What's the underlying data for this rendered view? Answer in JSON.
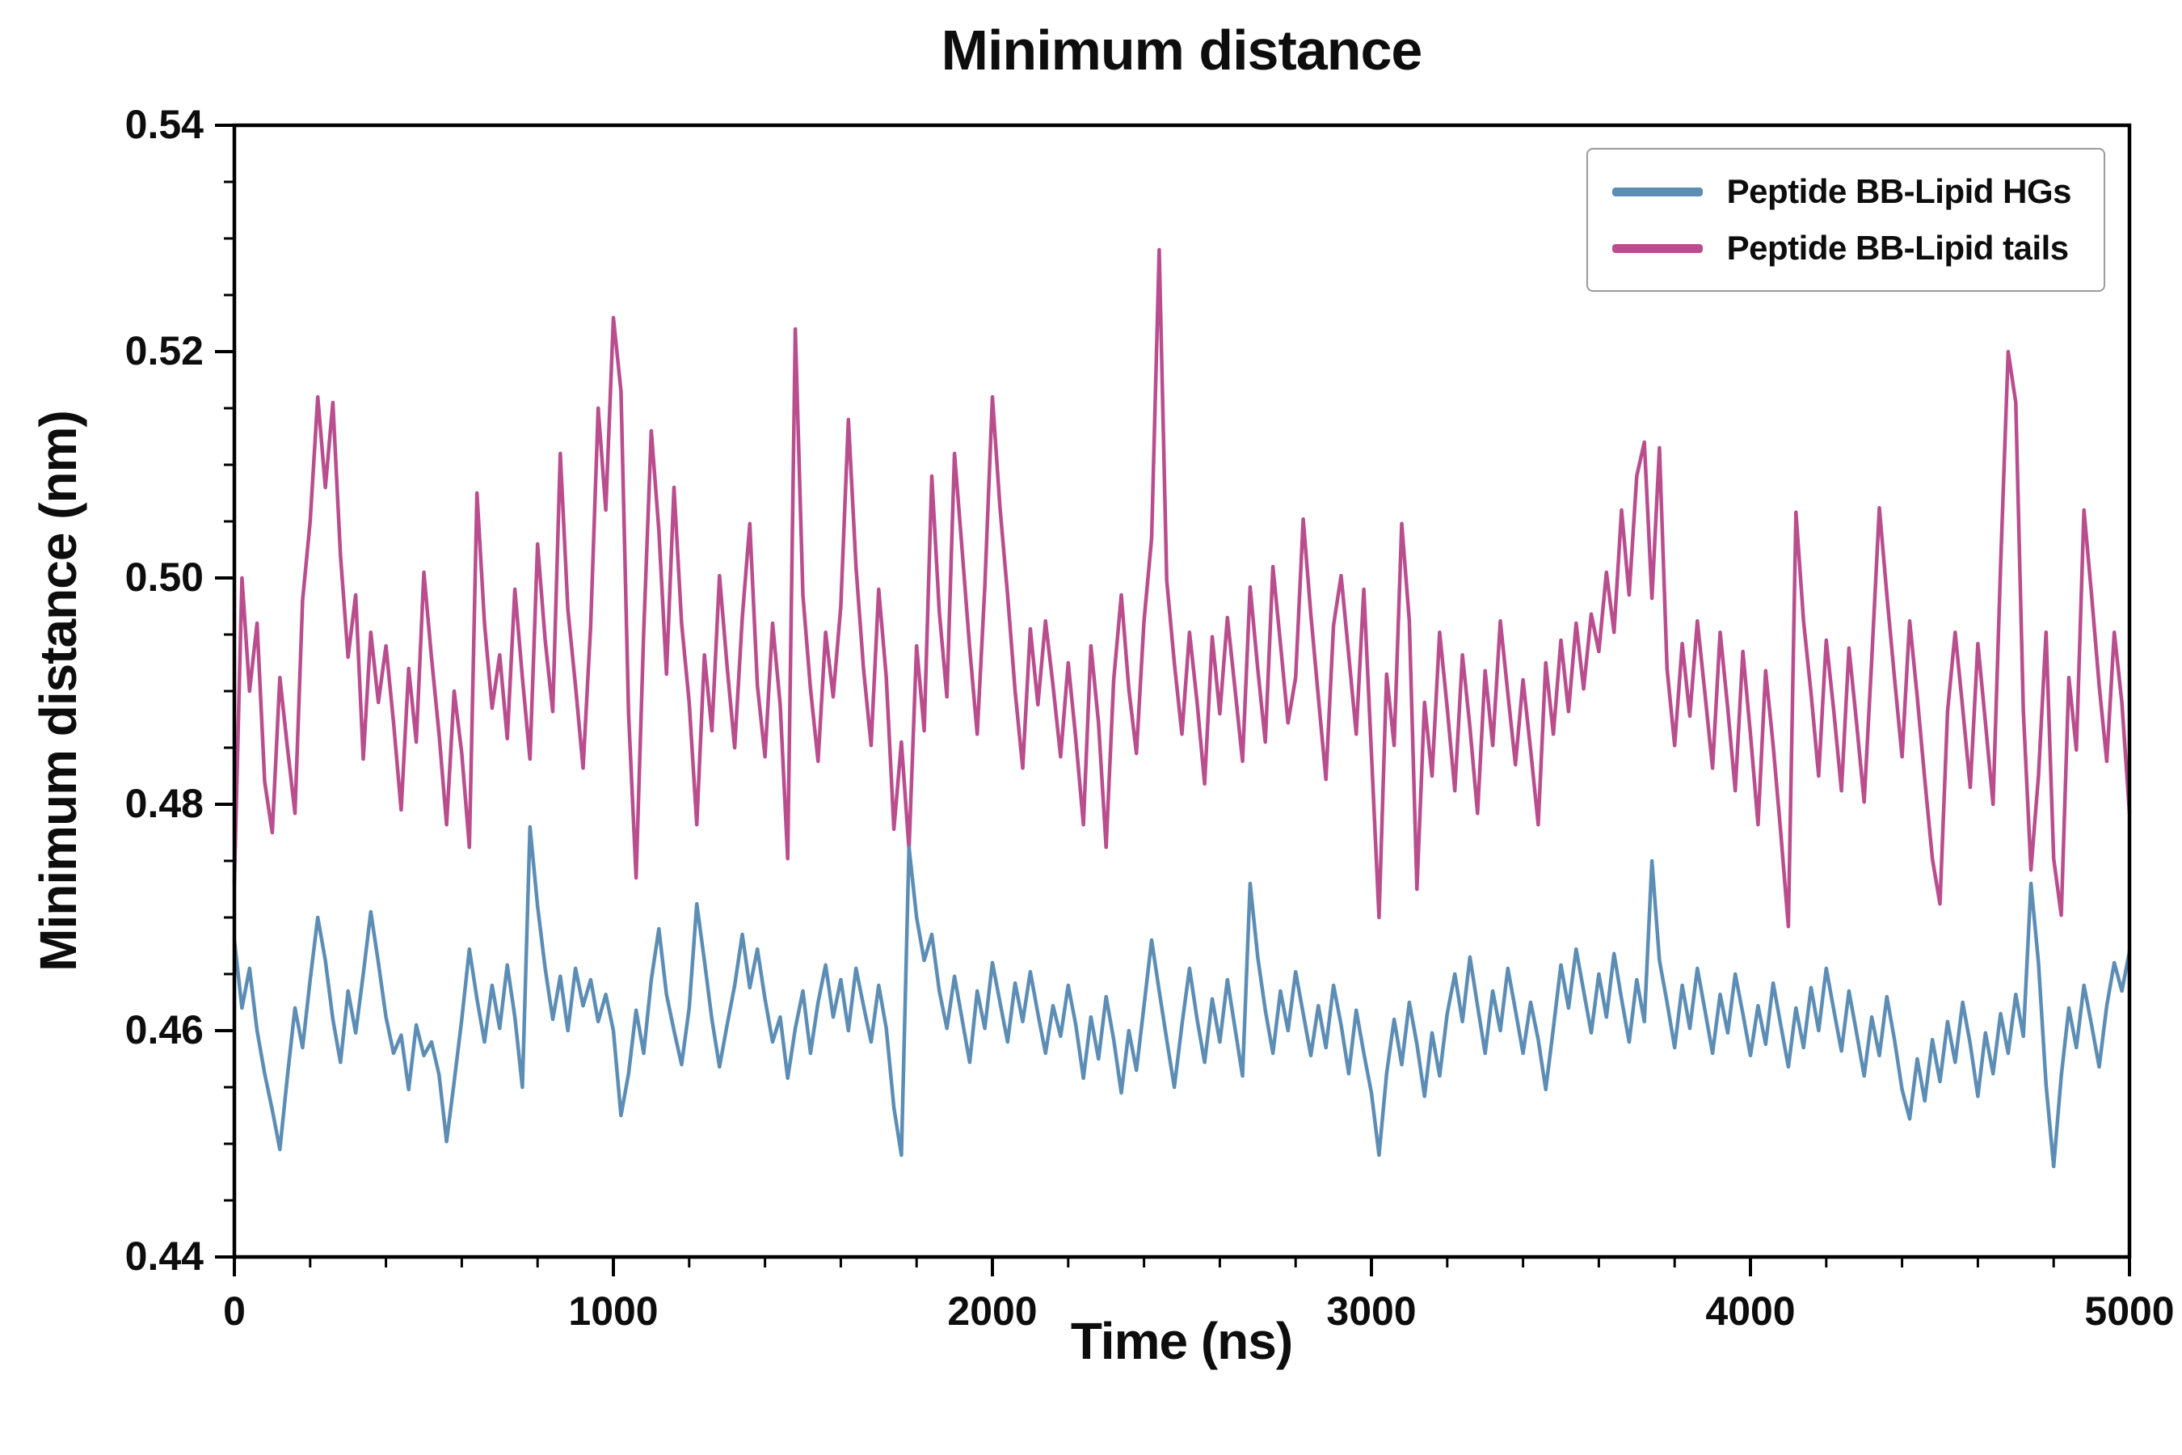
{
  "title": "Minimum distance",
  "axes": {
    "xlabel": "Time (ns)",
    "ylabel": "Minimum distance (nm)",
    "xlim": [
      0,
      5000
    ],
    "ylim": [
      0.44,
      0.54
    ],
    "x_major_ticks": [
      0,
      1000,
      2000,
      3000,
      4000,
      5000
    ],
    "x_tick_labels": [
      "0",
      "1000",
      "2000",
      "3000",
      "4000",
      "5000"
    ],
    "x_minor_step": 200,
    "y_major_ticks": [
      0.44,
      0.46,
      0.48,
      0.5,
      0.52,
      0.54
    ],
    "y_tick_labels": [
      "0.44",
      "0.46",
      "0.48",
      "0.50",
      "0.52",
      "0.54"
    ],
    "y_minor_step": 0.005
  },
  "legend": {
    "entries": [
      {
        "label": "Peptide BB-Lipid HGs",
        "color": "#5c8db5"
      },
      {
        "label": "Peptide BB-Lipid tails",
        "color": "#b94d8e"
      }
    ]
  },
  "colors": {
    "frame": "#000000",
    "blue_series": "#5c8db5",
    "pink_series": "#b94d8e"
  },
  "chart_data": {
    "type": "line",
    "title": "Minimum distance",
    "xlabel": "Time (ns)",
    "ylabel": "Minimum distance (nm)",
    "xlim": [
      0,
      5000
    ],
    "ylim": [
      0.44,
      0.54
    ],
    "grid": false,
    "legend_position": "upper right",
    "x_start": 0,
    "x_step": 20,
    "series": [
      {
        "name": "Peptide BB-Lipid HGs",
        "color": "#5c8db5",
        "values": [
          0.468,
          0.462,
          0.4655,
          0.46,
          0.4562,
          0.453,
          0.4495,
          0.456,
          0.462,
          0.4585,
          0.4645,
          0.47,
          0.4662,
          0.461,
          0.4572,
          0.4635,
          0.4598,
          0.465,
          0.4705,
          0.466,
          0.4612,
          0.458,
          0.4596,
          0.4548,
          0.4605,
          0.4578,
          0.459,
          0.4561,
          0.4502,
          0.4555,
          0.461,
          0.4672,
          0.4628,
          0.459,
          0.464,
          0.4602,
          0.4658,
          0.4612,
          0.455,
          0.478,
          0.471,
          0.4655,
          0.461,
          0.4648,
          0.46,
          0.4655,
          0.4622,
          0.4645,
          0.4608,
          0.4632,
          0.46,
          0.4525,
          0.4562,
          0.4618,
          0.458,
          0.4645,
          0.469,
          0.4632,
          0.46,
          0.457,
          0.462,
          0.4712,
          0.4662,
          0.461,
          0.4568,
          0.4605,
          0.464,
          0.4685,
          0.4638,
          0.4672,
          0.4628,
          0.459,
          0.4612,
          0.4558,
          0.4602,
          0.4635,
          0.458,
          0.4625,
          0.4658,
          0.4612,
          0.4645,
          0.46,
          0.4655,
          0.4622,
          0.459,
          0.464,
          0.4602,
          0.4532,
          0.449,
          0.4762,
          0.47,
          0.4662,
          0.4685,
          0.4635,
          0.4602,
          0.4648,
          0.461,
          0.4572,
          0.4635,
          0.4602,
          0.466,
          0.4625,
          0.459,
          0.4642,
          0.4608,
          0.4652,
          0.4615,
          0.458,
          0.4622,
          0.4595,
          0.464,
          0.4605,
          0.4558,
          0.4612,
          0.4575,
          0.463,
          0.4592,
          0.4545,
          0.46,
          0.4565,
          0.4622,
          0.468,
          0.4635,
          0.4592,
          0.455,
          0.4605,
          0.4655,
          0.461,
          0.4572,
          0.4628,
          0.459,
          0.4645,
          0.4602,
          0.456,
          0.473,
          0.4665,
          0.4618,
          0.458,
          0.4635,
          0.46,
          0.4652,
          0.4615,
          0.4578,
          0.4622,
          0.4585,
          0.464,
          0.4605,
          0.4562,
          0.4618,
          0.458,
          0.4545,
          0.449,
          0.4562,
          0.461,
          0.457,
          0.4625,
          0.4588,
          0.4542,
          0.4598,
          0.456,
          0.4615,
          0.465,
          0.4608,
          0.4665,
          0.4622,
          0.458,
          0.4635,
          0.46,
          0.4655,
          0.4618,
          0.458,
          0.4625,
          0.4592,
          0.4548,
          0.4602,
          0.4658,
          0.462,
          0.4672,
          0.4635,
          0.4598,
          0.465,
          0.4612,
          0.4668,
          0.4628,
          0.459,
          0.4645,
          0.4608,
          0.475,
          0.4662,
          0.4625,
          0.4585,
          0.464,
          0.4602,
          0.4655,
          0.4618,
          0.458,
          0.4632,
          0.4598,
          0.465,
          0.4615,
          0.4578,
          0.4622,
          0.4588,
          0.4642,
          0.4605,
          0.4568,
          0.462,
          0.4585,
          0.4638,
          0.46,
          0.4655,
          0.4618,
          0.4582,
          0.4635,
          0.4598,
          0.456,
          0.4612,
          0.4578,
          0.463,
          0.4592,
          0.4548,
          0.4522,
          0.4575,
          0.4538,
          0.4592,
          0.4555,
          0.4608,
          0.4572,
          0.4625,
          0.4588,
          0.4542,
          0.4598,
          0.4562,
          0.4615,
          0.458,
          0.4632,
          0.4595,
          0.473,
          0.466,
          0.4552,
          0.448,
          0.456,
          0.462,
          0.4585,
          0.464,
          0.4605,
          0.4568,
          0.4622,
          0.466,
          0.4635,
          0.467
        ]
      },
      {
        "name": "Peptide BB-Lipid tails",
        "color": "#b94d8e",
        "values": [
          0.473,
          0.5,
          0.49,
          0.496,
          0.482,
          0.4775,
          0.4912,
          0.485,
          0.4792,
          0.498,
          0.505,
          0.516,
          0.508,
          0.5155,
          0.502,
          0.493,
          0.4985,
          0.484,
          0.4952,
          0.489,
          0.494,
          0.4872,
          0.4795,
          0.492,
          0.4855,
          0.5005,
          0.493,
          0.4862,
          0.4782,
          0.49,
          0.4845,
          0.4762,
          0.5075,
          0.496,
          0.4885,
          0.4932,
          0.4858,
          0.499,
          0.4912,
          0.484,
          0.503,
          0.4945,
          0.4882,
          0.511,
          0.4972,
          0.4905,
          0.4832,
          0.4958,
          0.515,
          0.506,
          0.523,
          0.5165,
          0.488,
          0.4735,
          0.4952,
          0.513,
          0.5042,
          0.4915,
          0.508,
          0.496,
          0.489,
          0.4782,
          0.4932,
          0.4865,
          0.5002,
          0.4922,
          0.485,
          0.4965,
          0.5048,
          0.4905,
          0.4842,
          0.496,
          0.4888,
          0.4752,
          0.522,
          0.4985,
          0.4902,
          0.4838,
          0.4952,
          0.4895,
          0.4975,
          0.514,
          0.501,
          0.492,
          0.4852,
          0.499,
          0.4912,
          0.4778,
          0.4855,
          0.476,
          0.494,
          0.4865,
          0.509,
          0.497,
          0.4895,
          0.511,
          0.5025,
          0.4938,
          0.4862,
          0.4992,
          0.516,
          0.5062,
          0.4985,
          0.49,
          0.4832,
          0.4955,
          0.4888,
          0.4962,
          0.4905,
          0.4842,
          0.4925,
          0.4858,
          0.4782,
          0.494,
          0.4872,
          0.4762,
          0.491,
          0.4985,
          0.4902,
          0.4845,
          0.4962,
          0.5035,
          0.529,
          0.4998,
          0.4925,
          0.4862,
          0.4952,
          0.489,
          0.4818,
          0.4948,
          0.488,
          0.4965,
          0.4902,
          0.4838,
          0.4992,
          0.492,
          0.4855,
          0.501,
          0.4942,
          0.4872,
          0.4912,
          0.5052,
          0.4968,
          0.4895,
          0.4822,
          0.4958,
          0.5002,
          0.4932,
          0.4862,
          0.499,
          0.4845,
          0.47,
          0.4915,
          0.4852,
          0.5048,
          0.4962,
          0.4725,
          0.489,
          0.4825,
          0.4952,
          0.4885,
          0.4812,
          0.4932,
          0.4868,
          0.4792,
          0.4918,
          0.4852,
          0.4962,
          0.4898,
          0.4835,
          0.491,
          0.4848,
          0.4782,
          0.4925,
          0.4862,
          0.4945,
          0.4882,
          0.496,
          0.4902,
          0.4968,
          0.4935,
          0.5005,
          0.4952,
          0.506,
          0.4985,
          0.509,
          0.512,
          0.4982,
          0.5115,
          0.492,
          0.4852,
          0.4942,
          0.4878,
          0.4962,
          0.4898,
          0.4832,
          0.4952,
          0.4885,
          0.4812,
          0.4935,
          0.4862,
          0.4782,
          0.4918,
          0.4852,
          0.4775,
          0.4692,
          0.5058,
          0.4962,
          0.4898,
          0.4825,
          0.4945,
          0.4882,
          0.4812,
          0.4938,
          0.4872,
          0.4802,
          0.4928,
          0.5062,
          0.4985,
          0.4912,
          0.4842,
          0.4962,
          0.4895,
          0.4822,
          0.4752,
          0.4712,
          0.4882,
          0.4952,
          0.4885,
          0.4815,
          0.4942,
          0.4872,
          0.48,
          0.501,
          0.52,
          0.5155,
          0.4882,
          0.4742,
          0.4825,
          0.4952,
          0.4752,
          0.4702,
          0.4912,
          0.4848,
          0.506,
          0.4985,
          0.4905,
          0.4838,
          0.4952,
          0.489,
          0.4792
        ]
      }
    ]
  }
}
